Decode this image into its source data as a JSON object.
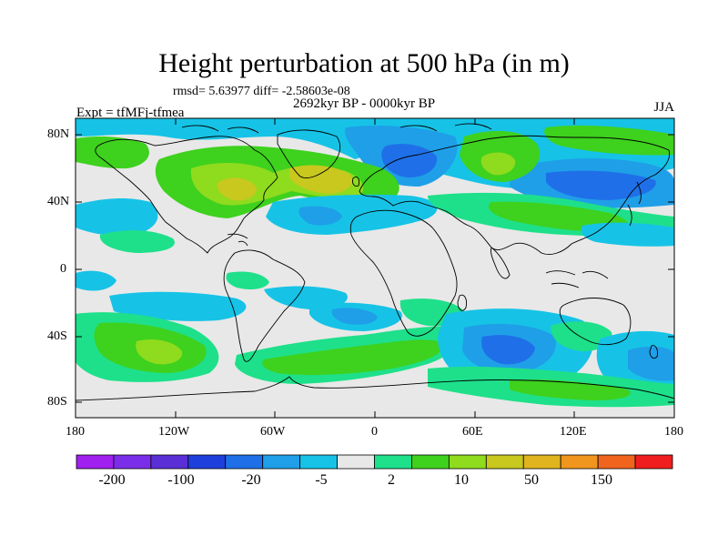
{
  "figure": {
    "title": "Height perturbation at 500 hPa (in m)",
    "stats": "rmsd= 5.63977 diff= -2.58603e-08",
    "period": "2692kyr BP - 0000kyr BP",
    "experiment": "Expt = tfMFj-tfmea",
    "season": "JJA"
  },
  "axes": {
    "y_ticks": [
      "80N",
      "40N",
      "0",
      "40S",
      "80S"
    ],
    "x_ticks": [
      "180",
      "120W",
      "60W",
      "0",
      "60E",
      "120E",
      "180"
    ]
  },
  "colorbar": {
    "colors": [
      "#a020f0",
      "#7b2ee8",
      "#5a2fd6",
      "#1f3fdc",
      "#1f70e8",
      "#1f9fe8",
      "#16c3e6",
      "#e8e8e8",
      "#1ee08a",
      "#3ed11e",
      "#8fdb1e",
      "#c8c81e",
      "#e0b41e",
      "#f0961e",
      "#f0641e",
      "#f01e1e"
    ],
    "labels": [
      "-200",
      "-100",
      "-20",
      "-5",
      "2",
      "10",
      "50",
      "150"
    ]
  },
  "field_colors": {
    "neutral": "#e8e8e8",
    "light_blue": "#16c3e6",
    "mid_blue": "#1f9fe8",
    "blue": "#1f70e8",
    "light_green": "#1ee08a",
    "green": "#3ed11e",
    "yellow_green": "#8fdb1e",
    "olive": "#c8c81e",
    "land_outline": "#000000"
  }
}
